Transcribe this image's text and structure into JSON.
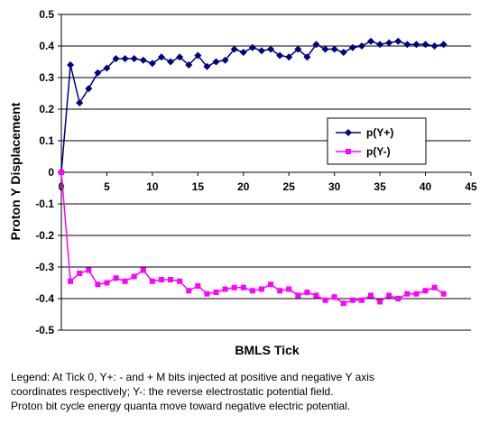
{
  "chart_data": {
    "type": "line",
    "title": "",
    "xlabel": "BMLS Tick",
    "ylabel": "Proton Y Displacement",
    "xlim": [
      0,
      45
    ],
    "ylim": [
      -0.5,
      0.5
    ],
    "x_ticks": [
      "0",
      "5",
      "10",
      "15",
      "20",
      "25",
      "30",
      "35",
      "40",
      "45"
    ],
    "y_ticks": [
      "0.5",
      "0.4",
      "0.3",
      "0.2",
      "0.1",
      "0",
      "-0.1",
      "-0.2",
      "-0.3",
      "-0.4",
      "-0.5"
    ],
    "grid": "horizontal",
    "legend_position": "right",
    "x": [
      0,
      1,
      2,
      3,
      4,
      5,
      6,
      7,
      8,
      9,
      10,
      11,
      12,
      13,
      14,
      15,
      16,
      17,
      18,
      19,
      20,
      21,
      22,
      23,
      24,
      25,
      26,
      27,
      28,
      29,
      30,
      31,
      32,
      33,
      34,
      35,
      36,
      37,
      38,
      39,
      40,
      41,
      42
    ],
    "series": [
      {
        "name": "p(Y+)",
        "color": "#000080",
        "marker": "diamond",
        "values": [
          0,
          0.34,
          0.22,
          0.265,
          0.315,
          0.33,
          0.36,
          0.36,
          0.36,
          0.355,
          0.345,
          0.365,
          0.35,
          0.365,
          0.34,
          0.37,
          0.335,
          0.35,
          0.355,
          0.39,
          0.38,
          0.395,
          0.385,
          0.39,
          0.37,
          0.365,
          0.39,
          0.365,
          0.405,
          0.39,
          0.39,
          0.38,
          0.395,
          0.4,
          0.415,
          0.405,
          0.41,
          0.415,
          0.405,
          0.405,
          0.405,
          0.4,
          0.405
        ]
      },
      {
        "name": "p(Y-)",
        "color": "#ff00ff",
        "marker": "square",
        "values": [
          0,
          -0.345,
          -0.32,
          -0.31,
          -0.355,
          -0.35,
          -0.335,
          -0.345,
          -0.33,
          -0.31,
          -0.345,
          -0.34,
          -0.34,
          -0.345,
          -0.375,
          -0.36,
          -0.385,
          -0.38,
          -0.37,
          -0.365,
          -0.365,
          -0.375,
          -0.37,
          -0.355,
          -0.375,
          -0.37,
          -0.39,
          -0.38,
          -0.39,
          -0.405,
          -0.395,
          -0.415,
          -0.405,
          -0.405,
          -0.39,
          -0.41,
          -0.39,
          -0.4,
          -0.385,
          -0.385,
          -0.375,
          -0.365,
          -0.385
        ]
      }
    ]
  },
  "caption": {
    "line1": "Legend: At Tick 0, Y+: - and + M bits injected at positive and negative Y axis",
    "line2": "coordinates respectively; Y-: the reverse electrostatic potential field.",
    "line3": "Proton bit cycle energy quanta move toward negative electric potential."
  }
}
